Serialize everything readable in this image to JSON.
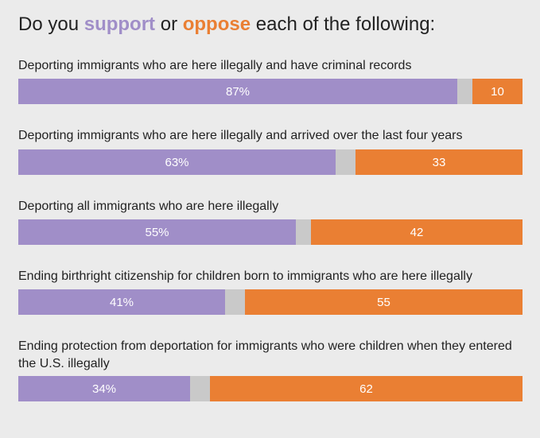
{
  "title": {
    "prefix": "Do you ",
    "support_word": "support",
    "middle": " or ",
    "oppose_word": "oppose",
    "suffix": " each of the following:"
  },
  "colors": {
    "support": "#a08ec8",
    "neutral": "#c9c9c9",
    "oppose": "#ea7f33",
    "background": "#ebebeb"
  },
  "chart_data": {
    "type": "bar",
    "orientation": "horizontal-stacked",
    "title": "Do you support or oppose each of the following:",
    "series_order": [
      "support",
      "neutral",
      "oppose"
    ],
    "categories": [
      "Deporting immigrants who are here illegally and have criminal records",
      "Deporting immigrants who are here illegally and arrived over the last four years",
      "Deporting all immigrants who are here illegally",
      "Ending birthright citizenship for children born to immigrants who are here illegally",
      "Ending protection from deportation for immigrants who were children when they entered the U.S. illegally"
    ],
    "rows": [
      {
        "support": 87,
        "support_label": "87%",
        "neutral": 3,
        "oppose": 10,
        "oppose_label": "10"
      },
      {
        "support": 63,
        "support_label": "63%",
        "neutral": 4,
        "oppose": 33,
        "oppose_label": "33"
      },
      {
        "support": 55,
        "support_label": "55%",
        "neutral": 3,
        "oppose": 42,
        "oppose_label": "42"
      },
      {
        "support": 41,
        "support_label": "41%",
        "neutral": 4,
        "oppose": 55,
        "oppose_label": "55"
      },
      {
        "support": 34,
        "support_label": "34%",
        "neutral": 4,
        "oppose": 62,
        "oppose_label": "62"
      }
    ]
  }
}
